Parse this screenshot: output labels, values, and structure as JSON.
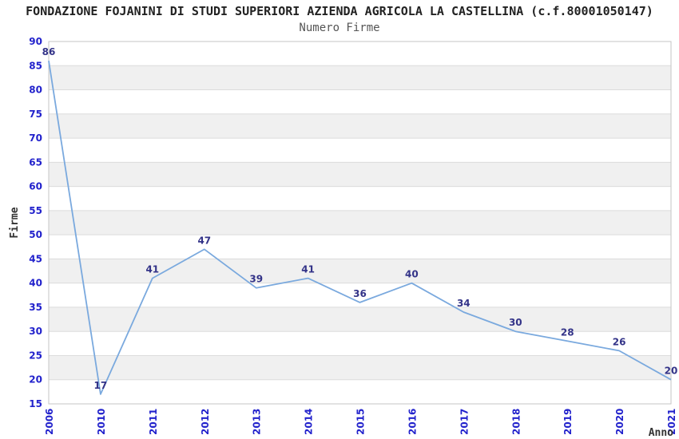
{
  "chart_data": {
    "type": "line",
    "title": "FONDAZIONE FOJANINI DI STUDI SUPERIORI AZIENDA AGRICOLA LA CASTELLINA (c.f.80001050147)",
    "subtitle": "Numero Firme",
    "xlabel": "Anno",
    "ylabel": "Firme",
    "categories": [
      "2006",
      "2010",
      "2011",
      "2012",
      "2013",
      "2014",
      "2015",
      "2016",
      "2017",
      "2018",
      "2019",
      "2020",
      "2021"
    ],
    "values": [
      86,
      17,
      41,
      47,
      39,
      41,
      36,
      40,
      34,
      30,
      28,
      26,
      20
    ],
    "ylim": [
      15,
      90
    ],
    "ytick_step": 5,
    "grid": "horizontal-alternating-bands",
    "legend": "none",
    "point_labels_visible": true,
    "x_tick_rotation": 90,
    "colors": {
      "line": "#7aa9de",
      "tick_labels": "#2222cc",
      "point_labels": "#333388",
      "band_fill": "#f0f0f0",
      "grid_line": "#dcdcdc",
      "plot_border": "#c6c6c6",
      "title_text": "#222222",
      "subtitle_text": "#555555",
      "axis_title_text": "#333333",
      "background": "#ffffff"
    }
  }
}
